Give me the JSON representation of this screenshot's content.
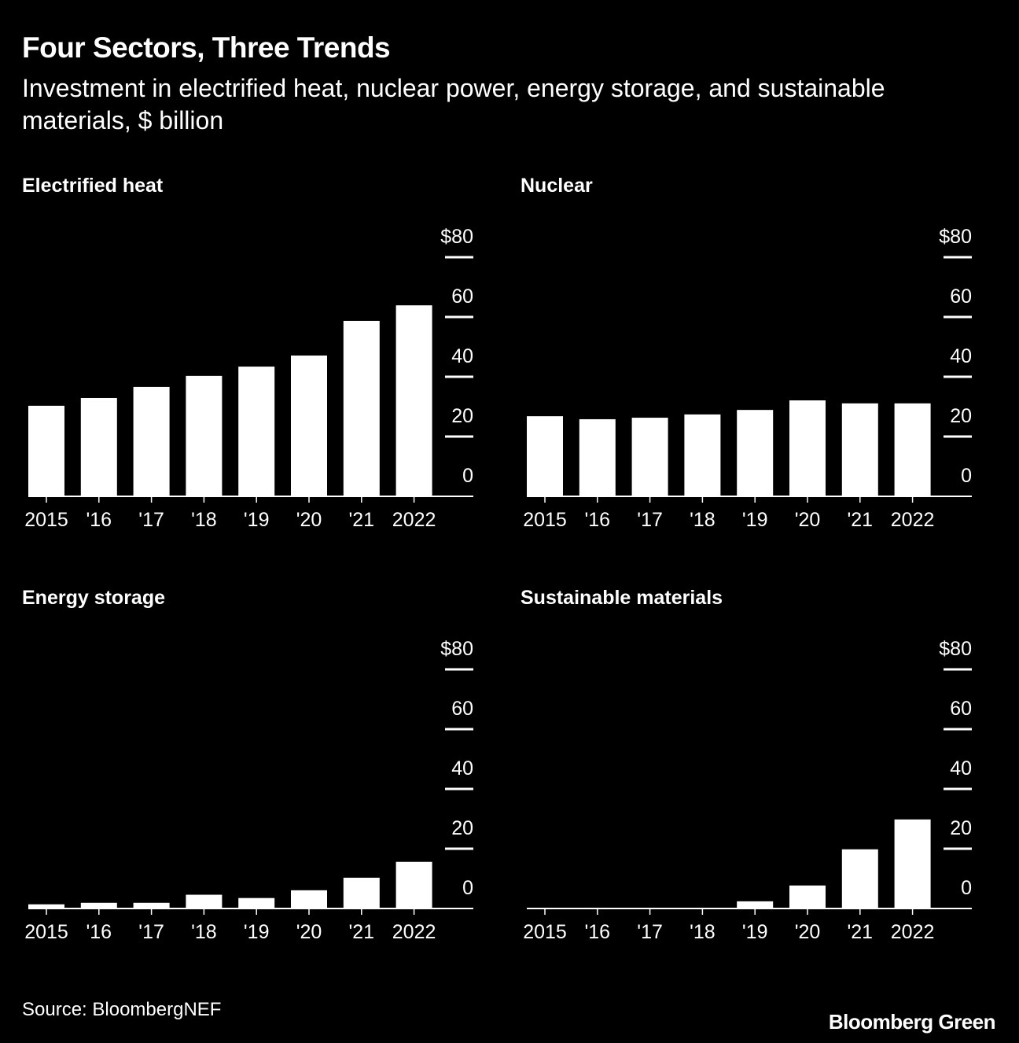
{
  "title": "Four Sectors, Three Trends",
  "subtitle": "Investment in electrified heat, nuclear power, energy storage, and sustainable materials, $ billion",
  "source": "Source: BloombergNEF",
  "brand": "Bloomberg Green",
  "colors": {
    "background": "#000000",
    "bars": "#ffffff"
  },
  "chart_data": [
    {
      "type": "bar",
      "title": "Electrified heat",
      "categories": [
        "2015",
        "'16",
        "'17",
        "'18",
        "'19",
        "'20",
        "'21",
        "2022"
      ],
      "values": [
        30.3,
        32.9,
        36.6,
        40.3,
        43.4,
        47.1,
        58.7,
        63.9
      ],
      "ylim": [
        0,
        80
      ],
      "yticks": [
        "0",
        "20",
        "40",
        "60",
        "$80"
      ],
      "grid": false
    },
    {
      "type": "bar",
      "title": "Nuclear",
      "categories": [
        "2015",
        "'16",
        "'17",
        "'18",
        "'19",
        "'20",
        "'21",
        "2022"
      ],
      "values": [
        26.8,
        25.8,
        26.3,
        27.4,
        28.9,
        32.1,
        31.1,
        31.1
      ],
      "ylim": [
        0,
        80
      ],
      "yticks": [
        "0",
        "20",
        "40",
        "60",
        "$80"
      ],
      "grid": false
    },
    {
      "type": "bar",
      "title": "Energy storage",
      "categories": [
        "2015",
        "'16",
        "'17",
        "'18",
        "'19",
        "'20",
        "'21",
        "2022"
      ],
      "values": [
        1.4,
        1.9,
        1.9,
        4.6,
        3.5,
        6.1,
        10.3,
        15.6
      ],
      "ylim": [
        0,
        80
      ],
      "yticks": [
        "0",
        "20",
        "40",
        "60",
        "$80"
      ],
      "grid": false
    },
    {
      "type": "bar",
      "title": "Sustainable materials",
      "categories": [
        "2015",
        "'16",
        "'17",
        "'18",
        "'19",
        "'20",
        "'21",
        "2022"
      ],
      "values": [
        0,
        0,
        0,
        0,
        2.4,
        7.7,
        19.8,
        29.8
      ],
      "ylim": [
        0,
        80
      ],
      "yticks": [
        "0",
        "20",
        "40",
        "60",
        "$80"
      ],
      "grid": false
    }
  ]
}
